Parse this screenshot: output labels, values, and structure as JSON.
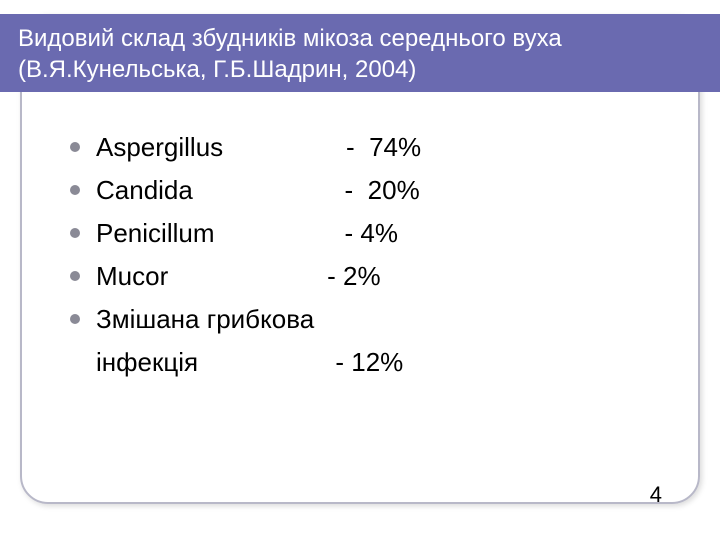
{
  "title": {
    "line1": "Видовий склад збудників мікоза середнього вуха",
    "line2": "(В.Я.Кунельська, Г.Б.Шадрин, 2004)"
  },
  "items": [
    {
      "text": "Aspergillus                 -  74%",
      "bullet": true
    },
    {
      "text": "Candida                     -  20%",
      "bullet": true
    },
    {
      "text": "Penicillum                  - 4%",
      "bullet": true
    },
    {
      "text": "Mucor                      - 2%",
      "bullet": true
    },
    {
      "text": "Змішана грибкова",
      "bullet": true
    },
    {
      "text": "інфекція                   - 12%",
      "bullet": false
    }
  ],
  "page_number": "4",
  "colors": {
    "title_bg": "#6a6ab0",
    "title_text": "#ffffff",
    "bullet": "#8a8a96",
    "body_text": "#000000",
    "frame_border": "#b8b8c8",
    "background": "#ffffff"
  },
  "typography": {
    "title_fontsize": 24,
    "body_fontsize": 26,
    "pagenum_fontsize": 22,
    "font_family": "Arial"
  }
}
